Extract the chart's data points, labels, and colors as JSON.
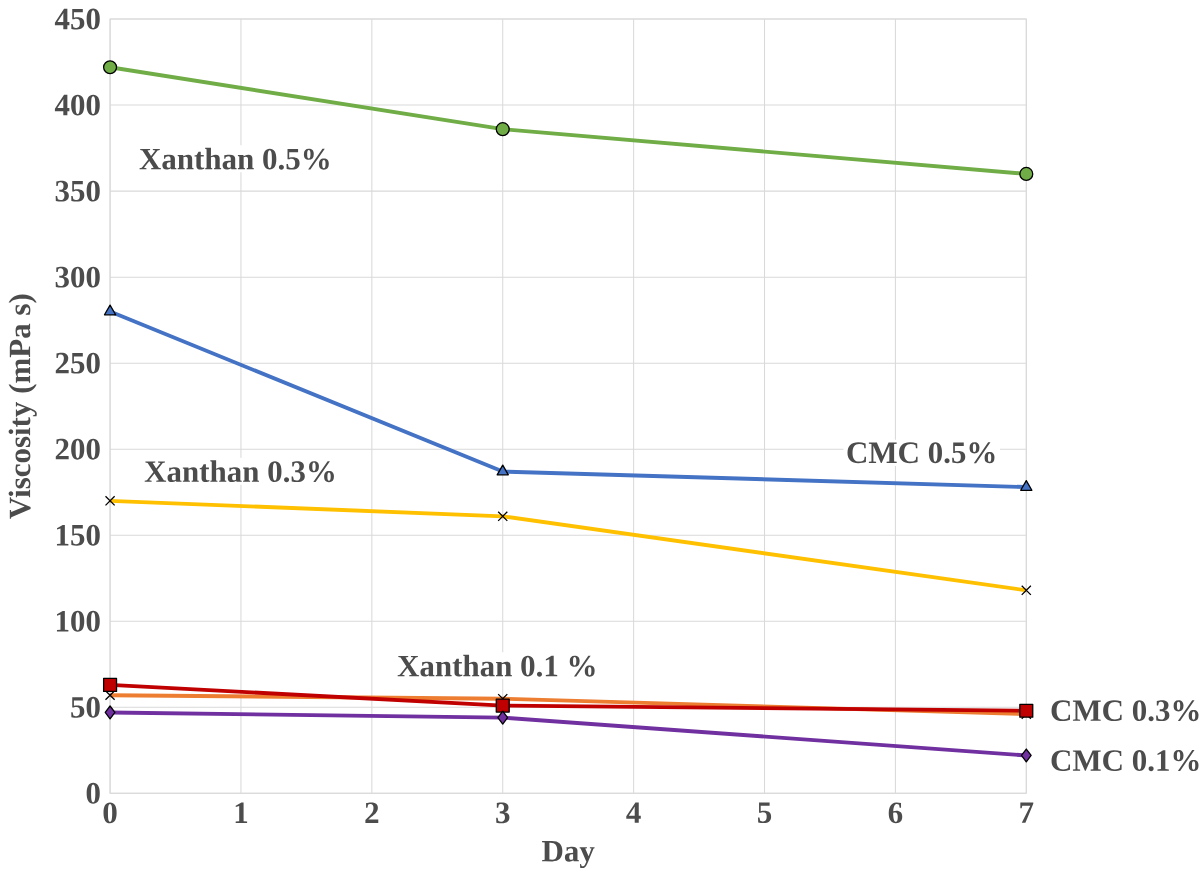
{
  "chart_data": {
    "type": "line",
    "xlabel": "Day",
    "ylabel": "Viscosity (mPa s)",
    "x": [
      0,
      3,
      7
    ],
    "xlim": [
      0,
      7
    ],
    "xticks": [
      0,
      1,
      2,
      3,
      4,
      5,
      6,
      7
    ],
    "ylim": [
      0,
      450
    ],
    "yticks": [
      0,
      50,
      100,
      150,
      200,
      250,
      300,
      350,
      400,
      450
    ],
    "grid": true,
    "legend": false,
    "series": [
      {
        "name": "Xanthan 0.5%",
        "color": "#70ad47",
        "marker": "circle",
        "values": [
          422,
          386,
          360
        ]
      },
      {
        "name": "CMC 0.5%",
        "color": "#4472c4",
        "marker": "triangle",
        "values": [
          280,
          187,
          178
        ]
      },
      {
        "name": "Xanthan 0.3%",
        "color": "#ffc000",
        "marker": "cross",
        "values": [
          170,
          161,
          118
        ]
      },
      {
        "name": "Xanthan 0.1 %",
        "color": "#ed7d31",
        "marker": "cross",
        "values": [
          57,
          55,
          46
        ]
      },
      {
        "name": "CMC 0.3%",
        "color": "#c00000",
        "marker": "square",
        "values": [
          63,
          51,
          48
        ]
      },
      {
        "name": "CMC 0.1%",
        "color": "#7030a0",
        "marker": "diamond",
        "values": [
          47,
          44,
          22
        ]
      }
    ]
  }
}
